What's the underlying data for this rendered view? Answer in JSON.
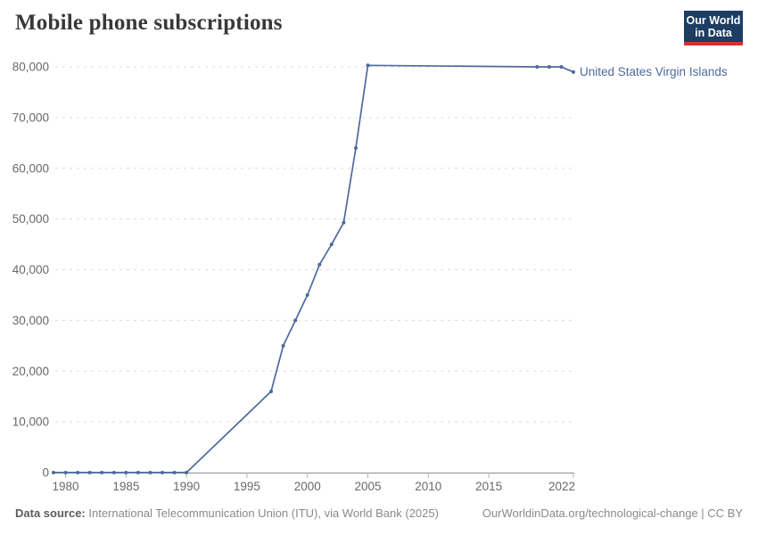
{
  "header": {
    "title": "Mobile phone subscriptions"
  },
  "logo": {
    "line1": "Our World",
    "line2": "in Data",
    "bg_color": "#1d3d63",
    "bar_color": "#d0342a"
  },
  "footer": {
    "source_label": "Data source:",
    "source_text": " International Telecommunication Union (ITU), via World Bank (2025)",
    "right_text": "OurWorldinData.org/technological-change | CC BY"
  },
  "colors": {
    "series_blue": "#4c6a9c",
    "grid_gray": "#dcdcdc",
    "axis_gray": "#8c8c8c",
    "tick_label_gray": "#696969",
    "footer_gray": "#8a8a8a"
  },
  "chart_data": {
    "type": "line",
    "title": "Mobile phone subscriptions",
    "xlabel": "",
    "ylabel": "",
    "x_range": [
      1979,
      2022
    ],
    "y_range": [
      0,
      80000
    ],
    "grid": "horizontal-dashed",
    "legend_position": "line-end-label",
    "x_ticks": [
      1980,
      1985,
      1990,
      1995,
      2000,
      2005,
      2010,
      2015,
      2022
    ],
    "x_tick_labels": [
      "1980",
      "1985",
      "1990",
      "1995",
      "2000",
      "2005",
      "2010",
      "2015",
      "2022"
    ],
    "y_ticks": [
      0,
      10000,
      20000,
      30000,
      40000,
      50000,
      60000,
      70000,
      80000
    ],
    "y_tick_labels": [
      "0",
      "10,000",
      "20,000",
      "30,000",
      "40,000",
      "50,000",
      "60,000",
      "70,000",
      "80,000"
    ],
    "series": [
      {
        "name": "United States Virgin Islands",
        "color": "#4c6a9c",
        "points": [
          [
            1979,
            0
          ],
          [
            1980,
            0
          ],
          [
            1981,
            0
          ],
          [
            1982,
            0
          ],
          [
            1983,
            0
          ],
          [
            1984,
            0
          ],
          [
            1985,
            0
          ],
          [
            1986,
            0
          ],
          [
            1987,
            0
          ],
          [
            1988,
            0
          ],
          [
            1989,
            0
          ],
          [
            1990,
            0
          ],
          [
            1997,
            16000
          ],
          [
            1998,
            25000
          ],
          [
            1999,
            30000
          ],
          [
            2000,
            35000
          ],
          [
            2001,
            41000
          ],
          [
            2002,
            45000
          ],
          [
            2003,
            49300
          ],
          [
            2004,
            64000
          ],
          [
            2005,
            80300
          ],
          [
            2019,
            80000
          ],
          [
            2020,
            80000
          ],
          [
            2021,
            80000
          ],
          [
            2022,
            79000
          ]
        ]
      }
    ]
  }
}
